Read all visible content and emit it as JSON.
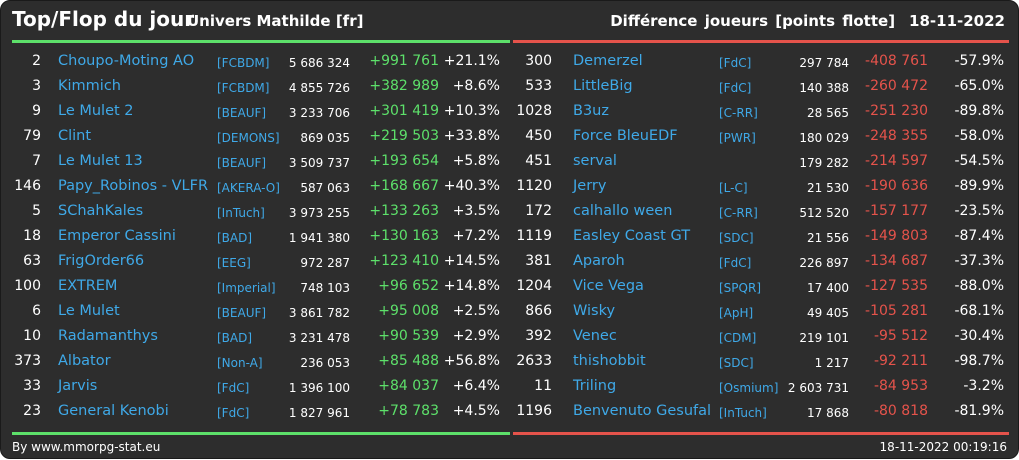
{
  "header": {
    "title": "Top/Flop du jour",
    "subtitle": "Univers Mathilde [fr]",
    "right_label": "Différence joueurs [points flotte]",
    "date": "18-11-2022"
  },
  "colors": {
    "top": "#5de06a",
    "flop": "#e5534b",
    "link": "#3fa9e8",
    "background": "#2d2d2d"
  },
  "top": [
    {
      "rank": "2",
      "name": "Choupo-Moting AO",
      "alliance": "[FCBDM]",
      "points": "5 686 324",
      "diff": "+991 761",
      "pct": "+21.1%"
    },
    {
      "rank": "3",
      "name": "Kimmich",
      "alliance": "[FCBDM]",
      "points": "4 855 726",
      "diff": "+382 989",
      "pct": "+8.6%"
    },
    {
      "rank": "9",
      "name": "Le Mulet 2",
      "alliance": "[BEAUF]",
      "points": "3 233 706",
      "diff": "+301 419",
      "pct": "+10.3%"
    },
    {
      "rank": "79",
      "name": "Clint",
      "alliance": "[DEMONS]",
      "points": "869 035",
      "diff": "+219 503",
      "pct": "+33.8%"
    },
    {
      "rank": "7",
      "name": "Le Mulet 13",
      "alliance": "[BEAUF]",
      "points": "3 509 737",
      "diff": "+193 654",
      "pct": "+5.8%"
    },
    {
      "rank": "146",
      "name": "Papy_Robinos - VLFR",
      "alliance": "[AKERA-O]",
      "points": "587 063",
      "diff": "+168 667",
      "pct": "+40.3%"
    },
    {
      "rank": "5",
      "name": "SChahKales",
      "alliance": "[InTuch]",
      "points": "3 973 255",
      "diff": "+133 263",
      "pct": "+3.5%"
    },
    {
      "rank": "18",
      "name": "Emperor Cassini",
      "alliance": "[BAD]",
      "points": "1 941 380",
      "diff": "+130 163",
      "pct": "+7.2%"
    },
    {
      "rank": "63",
      "name": "FrigOrder66",
      "alliance": "[EEG]",
      "points": "972 287",
      "diff": "+123 410",
      "pct": "+14.5%"
    },
    {
      "rank": "100",
      "name": "EXTREM",
      "alliance": "[Imperial]",
      "points": "748 103",
      "diff": "+96 652",
      "pct": "+14.8%"
    },
    {
      "rank": "6",
      "name": "Le Mulet",
      "alliance": "[BEAUF]",
      "points": "3 861 782",
      "diff": "+95 008",
      "pct": "+2.5%"
    },
    {
      "rank": "10",
      "name": "Radamanthys",
      "alliance": "[BAD]",
      "points": "3 231 478",
      "diff": "+90 539",
      "pct": "+2.9%"
    },
    {
      "rank": "373",
      "name": "Albator",
      "alliance": "[Non-A]",
      "points": "236 053",
      "diff": "+85 488",
      "pct": "+56.8%"
    },
    {
      "rank": "33",
      "name": "Jarvis",
      "alliance": "[FdC]",
      "points": "1 396 100",
      "diff": "+84 037",
      "pct": "+6.4%"
    },
    {
      "rank": "23",
      "name": "General Kenobi",
      "alliance": "[FdC]",
      "points": "1 827 961",
      "diff": "+78 783",
      "pct": "+4.5%"
    }
  ],
  "flop": [
    {
      "rank": "300",
      "name": "Demerzel",
      "alliance": "[FdC]",
      "points": "297 784",
      "diff": "-408 761",
      "pct": "-57.9%"
    },
    {
      "rank": "533",
      "name": "LittleBig",
      "alliance": "[FdC]",
      "points": "140 388",
      "diff": "-260 472",
      "pct": "-65.0%"
    },
    {
      "rank": "1028",
      "name": "B3uz",
      "alliance": "[C-RR]",
      "points": "28 565",
      "diff": "-251 230",
      "pct": "-89.8%"
    },
    {
      "rank": "450",
      "name": "Force BleuEDF",
      "alliance": "[PWR]",
      "points": "180 029",
      "diff": "-248 355",
      "pct": "-58.0%"
    },
    {
      "rank": "451",
      "name": "serval",
      "alliance": "",
      "points": "179 282",
      "diff": "-214 597",
      "pct": "-54.5%"
    },
    {
      "rank": "1120",
      "name": "Jerry",
      "alliance": "[L-C]",
      "points": "21 530",
      "diff": "-190 636",
      "pct": "-89.9%"
    },
    {
      "rank": "172",
      "name": "calhallo ween",
      "alliance": "[C-RR]",
      "points": "512 520",
      "diff": "-157 177",
      "pct": "-23.5%"
    },
    {
      "rank": "1119",
      "name": "Easley Coast GT",
      "alliance": "[SDC]",
      "points": "21 556",
      "diff": "-149 803",
      "pct": "-87.4%"
    },
    {
      "rank": "381",
      "name": "Aparoh",
      "alliance": "[FdC]",
      "points": "226 897",
      "diff": "-134 687",
      "pct": "-37.3%"
    },
    {
      "rank": "1204",
      "name": "Vice Vega",
      "alliance": "[SPQR]",
      "points": "17 400",
      "diff": "-127 535",
      "pct": "-88.0%"
    },
    {
      "rank": "866",
      "name": "Wisky",
      "alliance": "[ApH]",
      "points": "49 405",
      "diff": "-105 281",
      "pct": "-68.1%"
    },
    {
      "rank": "392",
      "name": "Venec",
      "alliance": "[CDM]",
      "points": "219 101",
      "diff": "-95 512",
      "pct": "-30.4%"
    },
    {
      "rank": "2633",
      "name": "thishobbit",
      "alliance": "[SDC]",
      "points": "1 217",
      "diff": "-92 211",
      "pct": "-98.7%"
    },
    {
      "rank": "11",
      "name": "Triling",
      "alliance": "[Osmium]",
      "points": "2 603 731",
      "diff": "-84 953",
      "pct": "-3.2%"
    },
    {
      "rank": "1196",
      "name": "Benvenuto Gesufal",
      "alliance": "[InTuch]",
      "points": "17 868",
      "diff": "-80 818",
      "pct": "-81.9%"
    }
  ],
  "footer": {
    "site": "By www.mmorpg-stat.eu",
    "timestamp": "18-11-2022 00:19:16"
  }
}
